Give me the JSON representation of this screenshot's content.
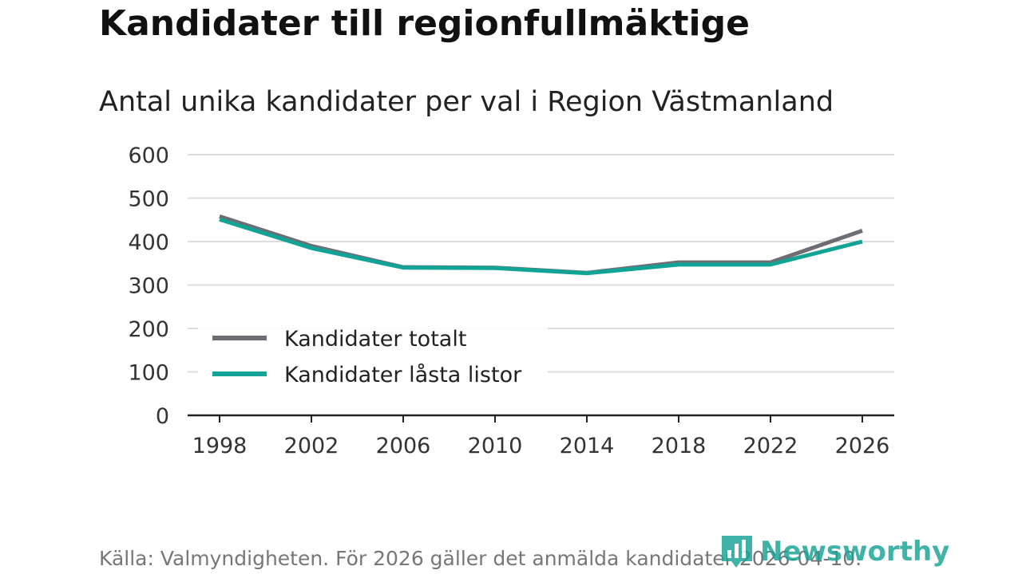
{
  "header": {
    "title": "Kandidater till regionfullmäktige",
    "subtitle": "Antal unika kandidater per val i Region Västmanland"
  },
  "footer": {
    "source": "Källa: Valmyndigheten. För 2026 gäller det anmälda kandidater 2026-04-10.",
    "brand": "Newsworthy",
    "brand_icon": "bar-chart-logo-icon"
  },
  "colors": {
    "total": "#6e6d73",
    "locked": "#12a397",
    "grid": "#dddddd",
    "axis": "#222222",
    "brand": "#16a394"
  },
  "chart_data": {
    "type": "line",
    "title": "Kandidater till regionfullmäktige",
    "subtitle": "Antal unika kandidater per val i Region Västmanland",
    "xlabel": "",
    "ylabel": "",
    "x": [
      1998,
      2002,
      2006,
      2010,
      2014,
      2018,
      2022,
      2026
    ],
    "ylim": [
      0,
      600
    ],
    "yticks": [
      0,
      100,
      200,
      300,
      400,
      500,
      600
    ],
    "grid": true,
    "legend_position": "lower-left",
    "series": [
      {
        "name": "Kandidater totalt",
        "values": [
          458,
          390,
          341,
          340,
          328,
          352,
          352,
          425
        ]
      },
      {
        "name": "Kandidater låsta listor",
        "values": [
          451,
          385,
          340,
          339,
          327,
          347,
          347,
          400
        ]
      }
    ]
  }
}
